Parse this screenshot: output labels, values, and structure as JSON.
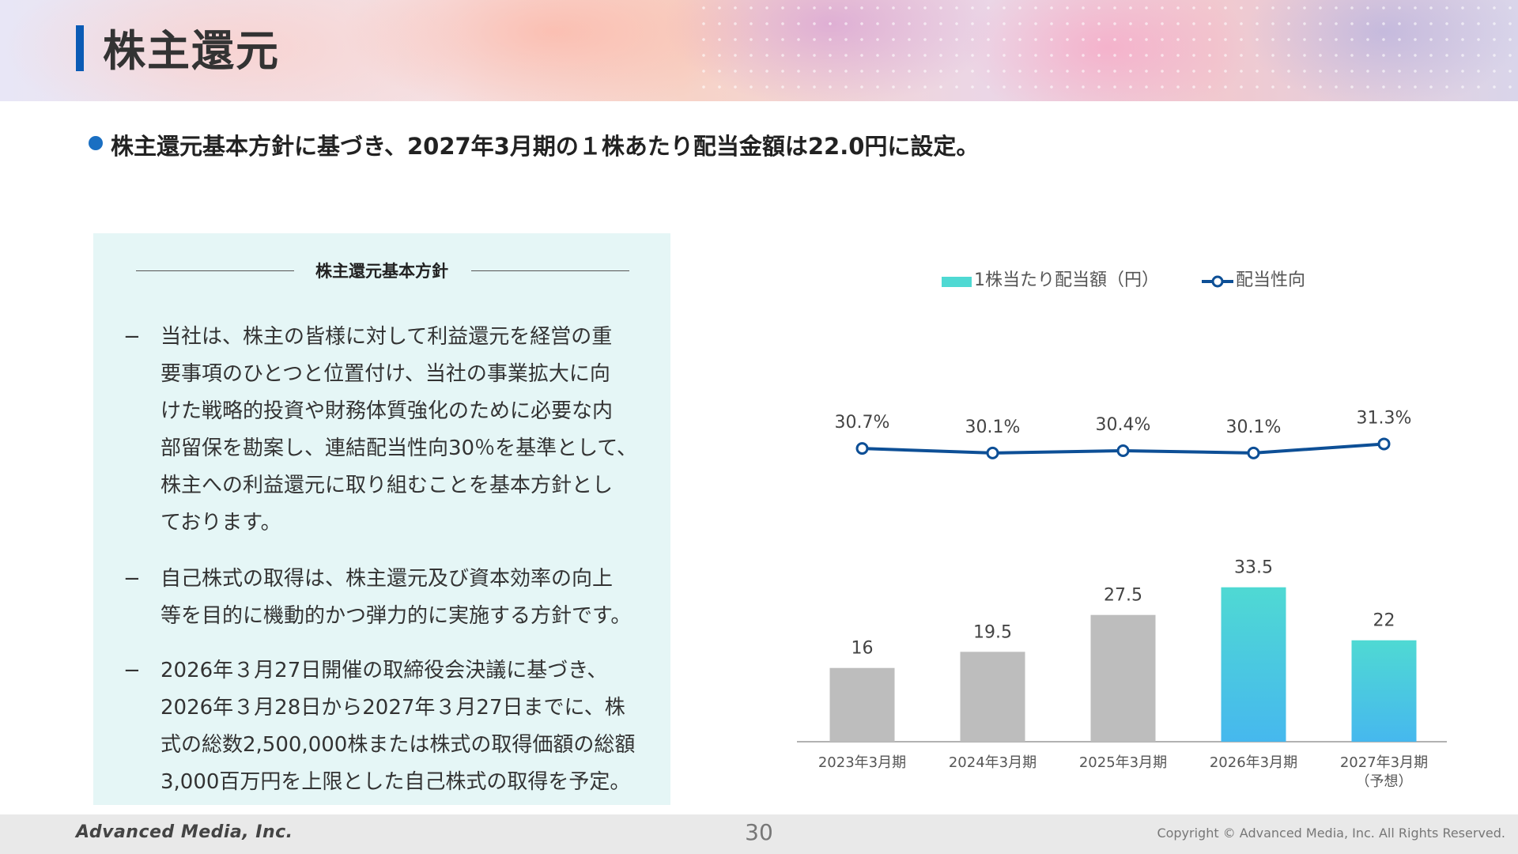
{
  "header": {
    "title": "株主還元"
  },
  "headline": "株主還元基本方針に基づき、2027年3月期の１株あたり配当金額は22.0円に設定。",
  "policy": {
    "title": "株主還元基本方針",
    "items": [
      {
        "dash": "−",
        "lines": [
          "当社は、株主の皆様に対して利益還元を経営の重",
          "要事項のひとつと位置付け、当社の事業拡大に向",
          "けた戦略的投資や財務体質強化のために必要な内",
          "部留保を勘案し、連結配当性向30％を基準として、",
          "株主への利益還元に取り組むことを基本方針とし",
          "ております。"
        ]
      },
      {
        "dash": "−",
        "lines": [
          "自己株式の取得は、株主還元及び資本効率の向上",
          "等を目的に機動的かつ弾力的に実施する方針です。"
        ]
      },
      {
        "dash": "−",
        "lines": [
          "2026年３月27日開催の取締役会決議に基づき、",
          "2026年３月28日から2027年３月27日までに、株",
          "式の総数2,500,000株または株式の取得価額の総額",
          "3,000百万円を上限とした自己株式の取得を予定。"
        ]
      }
    ]
  },
  "chart_data": {
    "type": "bar",
    "categories": [
      "2023年3月期",
      "2024年3月期",
      "2025年3月期",
      "2026年3月期",
      "2027年3月期"
    ],
    "category_sublabels": [
      "",
      "",
      "",
      "",
      "（予想）"
    ],
    "series": [
      {
        "name": "1株当たり配当額（円）",
        "type": "bar",
        "values": [
          16,
          19.5,
          27.5,
          33.5,
          22
        ],
        "labels": [
          "16",
          "19.5",
          "27.5",
          "33.5",
          "22"
        ]
      },
      {
        "name": "配当性向",
        "type": "line",
        "values": [
          30.7,
          30.1,
          30.4,
          30.1,
          31.3
        ],
        "labels": [
          "30.7%",
          "30.1%",
          "30.4%",
          "30.1%",
          "31.3%"
        ]
      }
    ],
    "legend_position": "top",
    "colors": {
      "bar_past": "#bdbdbd",
      "bar_highlight_top": "#4fd9d3",
      "bar_highlight_bottom": "#46b8ee",
      "line": "#0d4f96",
      "marker_fill": "#ffffff"
    },
    "highlight_indices": [
      3,
      4
    ],
    "grid": false
  },
  "footer": {
    "logo": "Advanced Media, Inc.",
    "page": "30",
    "copyright": "Copyright © Advanced Media, Inc. All Rights Reserved."
  }
}
